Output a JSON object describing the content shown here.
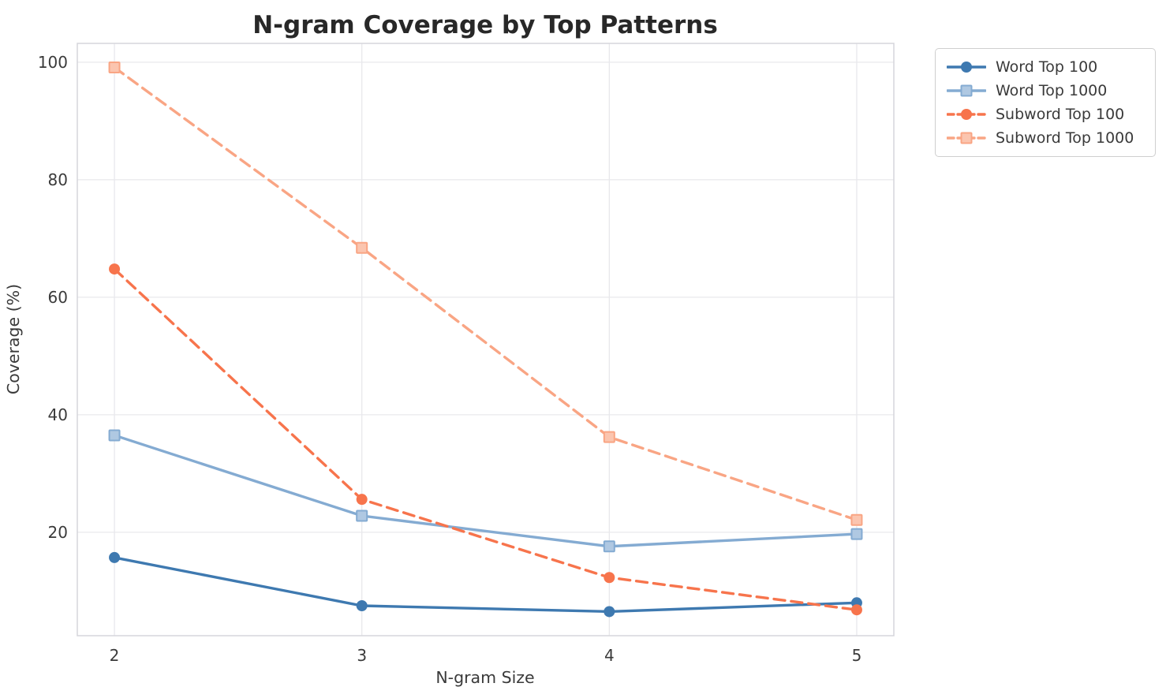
{
  "figure": {
    "background": "#ffffff",
    "grid_color": "#e8e8ec",
    "spine_color": "#d6d6dc",
    "title_color": "#282828",
    "text_color": "#3a3a3a"
  },
  "chart_data": {
    "type": "line",
    "title": "N-gram Coverage by Top Patterns",
    "xlabel": "N-gram Size",
    "ylabel": "Coverage (%)",
    "x": [
      2,
      3,
      4,
      5
    ],
    "xticks": [
      "2",
      "3",
      "4",
      "5"
    ],
    "yticks": [
      20,
      40,
      60,
      80,
      100
    ],
    "xlim": [
      1.85,
      5.15
    ],
    "ylim": [
      2.4,
      103.2
    ],
    "grid": true,
    "legend_position": "outside-upper-right",
    "series": [
      {
        "name": "Word Top 100",
        "marker": "circle",
        "line": "solid",
        "color": "#3e79b0",
        "values": [
          15.7,
          7.5,
          6.5,
          8.0
        ]
      },
      {
        "name": "Word Top 1000",
        "marker": "square",
        "line": "solid",
        "color": "#84abd2",
        "values": [
          36.5,
          22.8,
          17.6,
          19.7
        ]
      },
      {
        "name": "Subword Top 100",
        "marker": "circle",
        "line": "dashed",
        "color": "#f7744c",
        "values": [
          64.8,
          25.6,
          12.3,
          6.8
        ]
      },
      {
        "name": "Subword Top 1000",
        "marker": "square",
        "line": "dashed",
        "color": "#f9a584",
        "values": [
          99.1,
          68.4,
          36.2,
          22.1
        ]
      }
    ]
  }
}
